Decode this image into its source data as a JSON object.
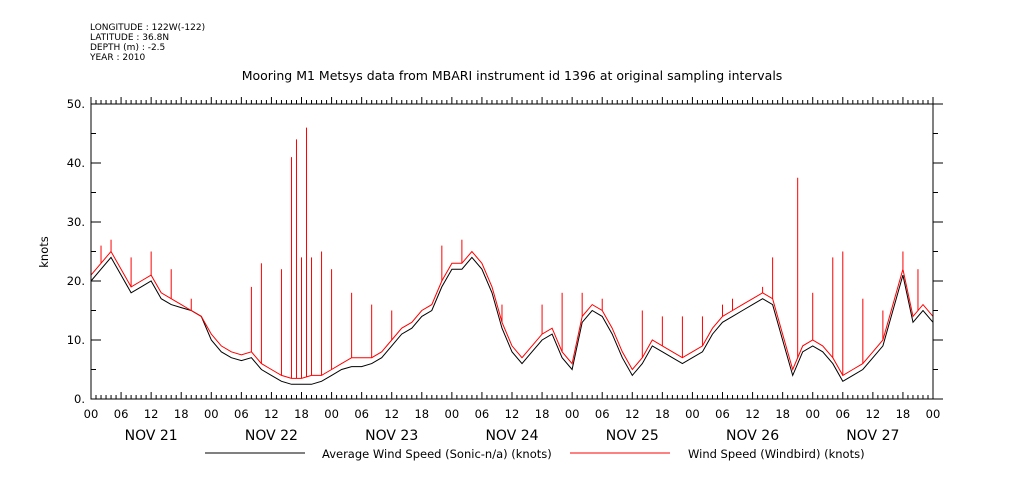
{
  "header": {
    "longitude": "LONGITUDE : 122W(-122)",
    "latitude": "LATITUDE : 36.8N",
    "depth": "DEPTH (m) : -2.5",
    "year": "YEAR : 2010"
  },
  "chart_data": {
    "type": "line",
    "title": "Mooring M1 Metsys data from MBARI instrument id 1396 at original sampling intervals",
    "ylabel": "knots",
    "ylim": [
      0,
      50
    ],
    "y_ticks": [
      "0.",
      "10.",
      "20.",
      "30.",
      "40.",
      "50."
    ],
    "xlim_hours": [
      0,
      168
    ],
    "x_hour_labels": [
      "00",
      "06",
      "12",
      "18",
      "00",
      "06",
      "12",
      "18",
      "00",
      "06",
      "12",
      "18",
      "00",
      "06",
      "12",
      "18",
      "00",
      "06",
      "12",
      "18",
      "00",
      "06",
      "12",
      "18",
      "00",
      "06",
      "12",
      "18",
      "00"
    ],
    "day_labels": [
      "NOV 21",
      "NOV 22",
      "NOV 23",
      "NOV 24",
      "NOV 25",
      "NOV 26",
      "NOV 27"
    ],
    "grid": false,
    "legend_position": "bottom",
    "series": [
      {
        "name": "Average Wind Speed (Sonic-n/a) (knots)",
        "color": "#000000",
        "points": [
          [
            0,
            20
          ],
          [
            2,
            22
          ],
          [
            4,
            24
          ],
          [
            6,
            21
          ],
          [
            8,
            18
          ],
          [
            10,
            19
          ],
          [
            12,
            20
          ],
          [
            14,
            17
          ],
          [
            16,
            16
          ],
          [
            18,
            15.5
          ],
          [
            20,
            15
          ],
          [
            22,
            14
          ],
          [
            24,
            10
          ],
          [
            26,
            8
          ],
          [
            28,
            7
          ],
          [
            30,
            6.5
          ],
          [
            32,
            7
          ],
          [
            34,
            5
          ],
          [
            36,
            4
          ],
          [
            38,
            3
          ],
          [
            40,
            2.5
          ],
          [
            42,
            2.5
          ],
          [
            44,
            2.5
          ],
          [
            46,
            3
          ],
          [
            48,
            4
          ],
          [
            50,
            5
          ],
          [
            52,
            5.5
          ],
          [
            54,
            5.5
          ],
          [
            56,
            6
          ],
          [
            58,
            7
          ],
          [
            60,
            9
          ],
          [
            62,
            11
          ],
          [
            64,
            12
          ],
          [
            66,
            14
          ],
          [
            68,
            15
          ],
          [
            70,
            19
          ],
          [
            72,
            22
          ],
          [
            74,
            22
          ],
          [
            76,
            24
          ],
          [
            78,
            22
          ],
          [
            80,
            18
          ],
          [
            82,
            12
          ],
          [
            84,
            8
          ],
          [
            86,
            6
          ],
          [
            88,
            8
          ],
          [
            90,
            10
          ],
          [
            92,
            11
          ],
          [
            94,
            7
          ],
          [
            96,
            5
          ],
          [
            98,
            13
          ],
          [
            100,
            15
          ],
          [
            102,
            14
          ],
          [
            104,
            11
          ],
          [
            106,
            7
          ],
          [
            108,
            4
          ],
          [
            110,
            6
          ],
          [
            112,
            9
          ],
          [
            114,
            8
          ],
          [
            116,
            7
          ],
          [
            118,
            6
          ],
          [
            120,
            7
          ],
          [
            122,
            8
          ],
          [
            124,
            11
          ],
          [
            126,
            13
          ],
          [
            128,
            14
          ],
          [
            130,
            15
          ],
          [
            132,
            16
          ],
          [
            134,
            17
          ],
          [
            136,
            16
          ],
          [
            138,
            10
          ],
          [
            140,
            4
          ],
          [
            142,
            8
          ],
          [
            144,
            9
          ],
          [
            146,
            8
          ],
          [
            148,
            6
          ],
          [
            150,
            3
          ],
          [
            152,
            4
          ],
          [
            154,
            5
          ],
          [
            156,
            7
          ],
          [
            158,
            9
          ],
          [
            160,
            15
          ],
          [
            162,
            21
          ],
          [
            164,
            13
          ],
          [
            166,
            15
          ],
          [
            168,
            13
          ]
        ]
      },
      {
        "name": "Wind Speed (Windbird) (knots)",
        "color": "#ff0000",
        "points": [
          [
            0,
            21
          ],
          [
            2,
            23
          ],
          [
            4,
            25
          ],
          [
            6,
            22
          ],
          [
            8,
            19
          ],
          [
            10,
            20
          ],
          [
            12,
            21
          ],
          [
            14,
            18
          ],
          [
            16,
            17
          ],
          [
            18,
            16
          ],
          [
            20,
            15
          ],
          [
            22,
            14
          ],
          [
            24,
            11
          ],
          [
            26,
            9
          ],
          [
            28,
            8
          ],
          [
            30,
            7.5
          ],
          [
            32,
            8
          ],
          [
            34,
            6
          ],
          [
            36,
            5
          ],
          [
            38,
            4
          ],
          [
            40,
            3.5
          ],
          [
            42,
            3.5
          ],
          [
            44,
            4
          ],
          [
            46,
            4
          ],
          [
            48,
            5
          ],
          [
            50,
            6
          ],
          [
            52,
            7
          ],
          [
            54,
            7
          ],
          [
            56,
            7
          ],
          [
            58,
            8
          ],
          [
            60,
            10
          ],
          [
            62,
            12
          ],
          [
            64,
            13
          ],
          [
            66,
            15
          ],
          [
            68,
            16
          ],
          [
            70,
            20
          ],
          [
            72,
            23
          ],
          [
            74,
            23
          ],
          [
            76,
            25
          ],
          [
            78,
            23
          ],
          [
            80,
            19
          ],
          [
            82,
            13
          ],
          [
            84,
            9
          ],
          [
            86,
            7
          ],
          [
            88,
            9
          ],
          [
            90,
            11
          ],
          [
            92,
            12
          ],
          [
            94,
            8
          ],
          [
            96,
            6
          ],
          [
            98,
            14
          ],
          [
            100,
            16
          ],
          [
            102,
            15
          ],
          [
            104,
            12
          ],
          [
            106,
            8
          ],
          [
            108,
            5
          ],
          [
            110,
            7
          ],
          [
            112,
            10
          ],
          [
            114,
            9
          ],
          [
            116,
            8
          ],
          [
            118,
            7
          ],
          [
            120,
            8
          ],
          [
            122,
            9
          ],
          [
            124,
            12
          ],
          [
            126,
            14
          ],
          [
            128,
            15
          ],
          [
            130,
            16
          ],
          [
            132,
            17
          ],
          [
            134,
            18
          ],
          [
            136,
            17
          ],
          [
            138,
            11
          ],
          [
            140,
            5
          ],
          [
            142,
            9
          ],
          [
            144,
            10
          ],
          [
            146,
            9
          ],
          [
            148,
            7
          ],
          [
            150,
            4
          ],
          [
            152,
            5
          ],
          [
            154,
            6
          ],
          [
            156,
            8
          ],
          [
            158,
            10
          ],
          [
            160,
            16
          ],
          [
            162,
            22
          ],
          [
            164,
            14
          ],
          [
            166,
            16
          ],
          [
            168,
            14
          ]
        ],
        "spikes": [
          [
            2,
            26
          ],
          [
            4,
            27
          ],
          [
            8,
            24
          ],
          [
            12,
            25
          ],
          [
            16,
            22
          ],
          [
            20,
            17
          ],
          [
            32,
            19
          ],
          [
            34,
            23
          ],
          [
            38,
            22
          ],
          [
            40,
            41
          ],
          [
            41,
            44
          ],
          [
            42,
            24
          ],
          [
            43,
            46
          ],
          [
            44,
            24
          ],
          [
            46,
            25
          ],
          [
            48,
            22
          ],
          [
            52,
            18
          ],
          [
            56,
            16
          ],
          [
            60,
            15
          ],
          [
            68,
            16
          ],
          [
            70,
            26
          ],
          [
            74,
            27
          ],
          [
            82,
            16
          ],
          [
            90,
            16
          ],
          [
            94,
            18
          ],
          [
            98,
            18
          ],
          [
            102,
            17
          ],
          [
            110,
            15
          ],
          [
            114,
            14
          ],
          [
            118,
            14
          ],
          [
            122,
            14
          ],
          [
            126,
            16
          ],
          [
            128,
            17
          ],
          [
            134,
            19
          ],
          [
            136,
            24
          ],
          [
            141,
            37.5
          ],
          [
            144,
            18
          ],
          [
            148,
            24
          ],
          [
            150,
            25
          ],
          [
            154,
            17
          ],
          [
            158,
            15
          ],
          [
            162,
            25
          ],
          [
            165,
            22
          ]
        ]
      }
    ]
  }
}
